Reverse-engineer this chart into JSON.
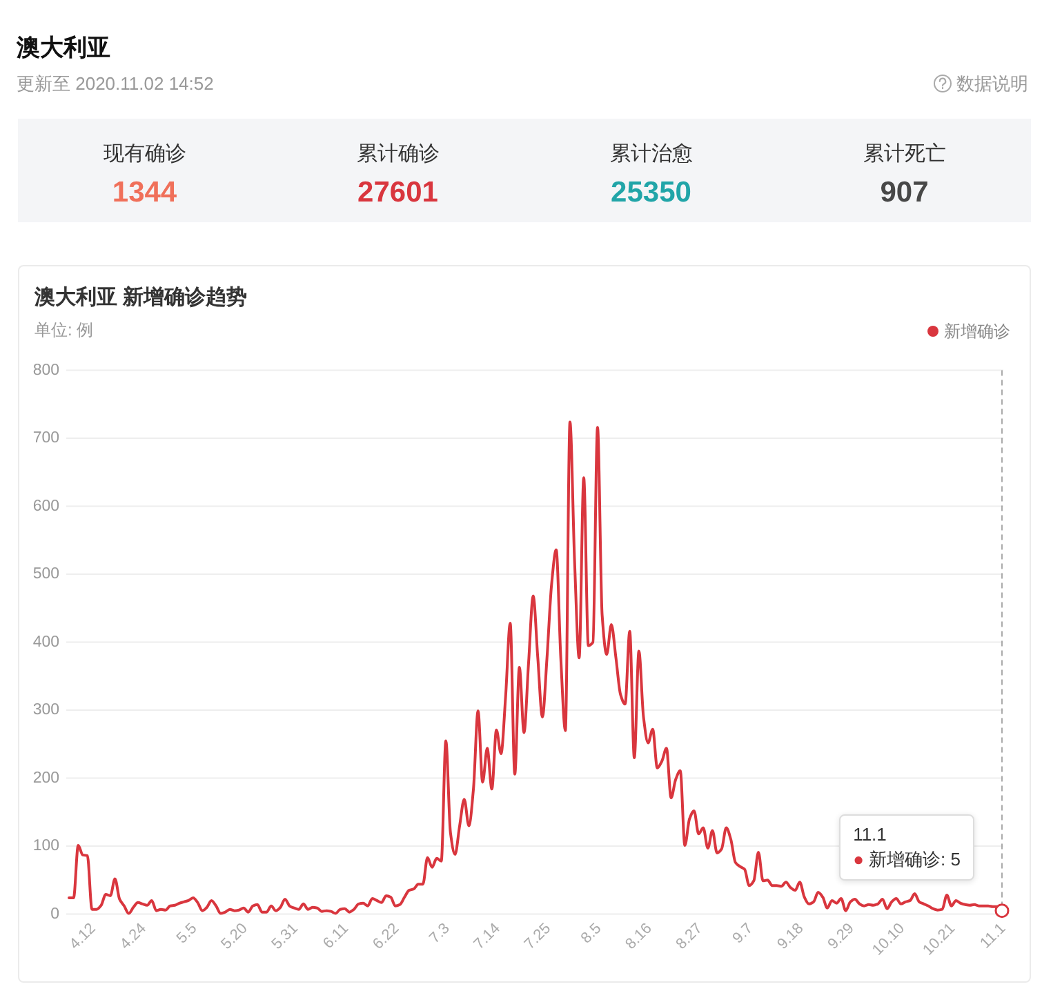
{
  "chart_data": [
    {
      "type": "other",
      "title": "澳大利亚",
      "subtitle": "更新至 2020.11.02 14:52",
      "annotations": [
        "数据说明"
      ],
      "categories": [
        "现有确诊",
        "累计确诊",
        "累计治愈",
        "累计死亡"
      ],
      "values": [
        1344,
        27601,
        25350,
        907
      ],
      "colors": [
        "#f0705a",
        "#d9363e",
        "#21a5a8",
        "#484848"
      ],
      "data_labels": true
    },
    {
      "type": "line",
      "title": "澳大利亚 新增确诊趋势",
      "subtitle": "单位: 例",
      "categories": [
        null,
        null,
        null,
        null,
        null,
        "4.12",
        null,
        null,
        null,
        null,
        null,
        null,
        null,
        null,
        null,
        null,
        "4.24",
        null,
        null,
        null,
        null,
        null,
        null,
        null,
        null,
        null,
        null,
        "5.5",
        null,
        null,
        null,
        null,
        null,
        null,
        null,
        null,
        null,
        null,
        "5.20",
        null,
        null,
        null,
        null,
        null,
        null,
        null,
        null,
        null,
        null,
        "5.31",
        null,
        null,
        null,
        null,
        null,
        null,
        null,
        null,
        null,
        null,
        "6.11",
        null,
        null,
        null,
        null,
        null,
        null,
        null,
        null,
        null,
        null,
        "6.22",
        null,
        null,
        null,
        null,
        null,
        null,
        null,
        null,
        null,
        null,
        "7.3",
        null,
        null,
        null,
        null,
        null,
        null,
        null,
        null,
        null,
        null,
        "7.14",
        null,
        null,
        null,
        null,
        null,
        null,
        null,
        null,
        null,
        null,
        "7.25",
        null,
        null,
        null,
        null,
        null,
        null,
        null,
        null,
        null,
        null,
        "8.5",
        null,
        null,
        null,
        null,
        null,
        null,
        null,
        null,
        null,
        null,
        "8.16",
        null,
        null,
        null,
        null,
        null,
        null,
        null,
        null,
        null,
        null,
        "8.27",
        null,
        null,
        null,
        null,
        null,
        null,
        null,
        null,
        null,
        null,
        "9.7",
        null,
        null,
        null,
        null,
        null,
        null,
        null,
        null,
        null,
        null,
        "9.18",
        null,
        null,
        null,
        null,
        null,
        null,
        null,
        null,
        null,
        null,
        "9.29",
        null,
        null,
        null,
        null,
        null,
        null,
        null,
        null,
        null,
        null,
        "10.10",
        null,
        null,
        null,
        null,
        null,
        null,
        null,
        null,
        null,
        null,
        "10.21",
        null,
        null,
        null,
        null,
        null,
        null,
        null,
        null,
        null,
        null,
        "11.1"
      ],
      "series": [
        {
          "name": "新增确诊",
          "color": "#d9363e",
          "values": [
            24,
            24,
            101,
            87,
            86,
            7,
            7,
            13,
            29,
            27,
            52,
            22,
            12,
            1,
            10,
            17,
            15,
            13,
            20,
            5,
            7,
            6,
            12,
            13,
            16,
            18,
            20,
            24,
            17,
            5,
            10,
            20,
            12,
            1,
            3,
            7,
            5,
            6,
            9,
            3,
            12,
            14,
            3,
            3,
            12,
            5,
            10,
            22,
            12,
            9,
            7,
            15,
            7,
            10,
            9,
            4,
            5,
            4,
            1,
            7,
            8,
            3,
            7,
            15,
            16,
            12,
            23,
            20,
            17,
            27,
            25,
            12,
            14,
            25,
            35,
            37,
            44,
            44,
            83,
            69,
            82,
            78,
            255,
            120,
            88,
            130,
            169,
            130,
            184,
            299,
            194,
            244,
            184,
            271,
            236,
            320,
            428,
            206,
            363,
            267,
            370,
            468,
            377,
            290,
            377,
            485,
            536,
            377,
            270,
            724,
            520,
            377,
            642,
            395,
            400,
            716,
            440,
            382,
            426,
            377,
            323,
            309,
            416,
            230,
            387,
            290,
            252,
            272,
            215,
            225,
            244,
            171,
            198,
            211,
            101,
            140,
            152,
            118,
            127,
            97,
            123,
            90,
            96,
            127,
            110,
            76,
            70,
            66,
            42,
            49,
            91,
            49,
            50,
            42,
            42,
            41,
            47,
            39,
            35,
            47,
            25,
            15,
            18,
            32,
            25,
            9,
            20,
            16,
            23,
            5,
            18,
            22,
            15,
            12,
            14,
            13,
            15,
            22,
            8,
            18,
            23,
            15,
            18,
            20,
            30,
            18,
            15,
            12,
            8,
            6,
            7,
            28,
            12,
            20,
            16,
            14,
            13,
            14,
            12,
            12,
            12,
            11,
            11,
            5
          ]
        }
      ],
      "ylim": [
        0,
        800
      ],
      "yticks": [
        0,
        100,
        200,
        300,
        400,
        500,
        600,
        700,
        800
      ],
      "grid": "y",
      "legend": "top right",
      "ref_lines": [
        {
          "axis": "x",
          "value": "11.1",
          "color": "#aaaaaa",
          "line_style": "dashed"
        }
      ],
      "annotations": [
        "11.1\n● 新增确诊: 5"
      ]
    }
  ]
}
